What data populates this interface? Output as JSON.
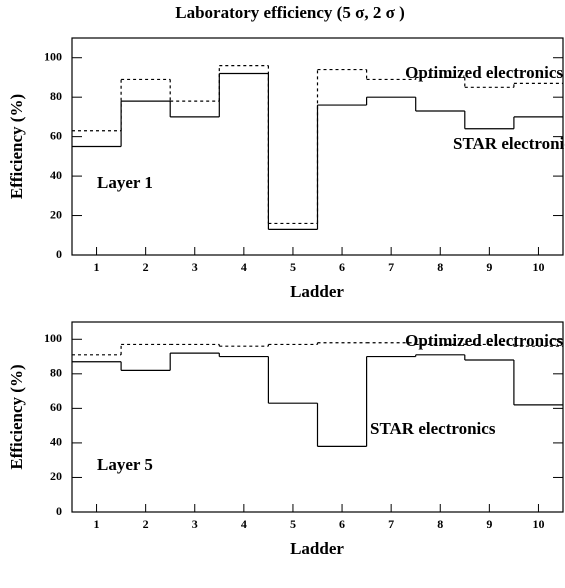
{
  "chart_data": [
    {
      "type": "step",
      "title": "Laboratory efficiency (5 σ, 2 σ )",
      "xlabel": "Ladder",
      "ylabel": "Efficiency (%)",
      "x": [
        1,
        2,
        3,
        4,
        5,
        6,
        7,
        8,
        9,
        10
      ],
      "series": [
        {
          "name": "Optimized electronics",
          "color": "#000000",
          "linestyle": "dashed",
          "values": [
            63,
            89,
            78,
            96,
            16,
            94,
            89,
            90,
            85,
            87
          ]
        },
        {
          "name": "STAR electronics",
          "color": "#000000",
          "linestyle": "solid",
          "values": [
            55,
            78,
            70,
            92,
            13,
            76,
            80,
            73,
            64,
            70
          ]
        }
      ],
      "annotations": [
        "Layer 1"
      ],
      "xlim": [
        0.5,
        10.5
      ],
      "xticks": [
        1,
        2,
        3,
        4,
        5,
        6,
        7,
        8,
        9,
        10
      ],
      "ylim": [
        0,
        110
      ],
      "yticks": [
        0,
        20,
        40,
        60,
        80,
        100
      ]
    },
    {
      "type": "step",
      "xlabel": "Ladder",
      "ylabel": "Efficiency (%)",
      "x": [
        1,
        2,
        3,
        4,
        5,
        6,
        7,
        8,
        9,
        10
      ],
      "series": [
        {
          "name": "Optimized electronics",
          "color": "#000000",
          "linestyle": "dashed",
          "values": [
            91,
            97,
            97,
            96,
            97,
            98,
            98,
            97,
            97,
            96
          ]
        },
        {
          "name": "STAR electronics",
          "color": "#000000",
          "linestyle": "solid",
          "values": [
            87,
            82,
            92,
            90,
            63,
            38,
            90,
            91,
            88,
            62
          ]
        }
      ],
      "annotations": [
        "Layer 5"
      ],
      "xlim": [
        0.5,
        10.5
      ],
      "xticks": [
        1,
        2,
        3,
        4,
        5,
        6,
        7,
        8,
        9,
        10
      ],
      "ylim": [
        0,
        110
      ],
      "yticks": [
        0,
        20,
        40,
        60,
        80,
        100
      ]
    }
  ]
}
